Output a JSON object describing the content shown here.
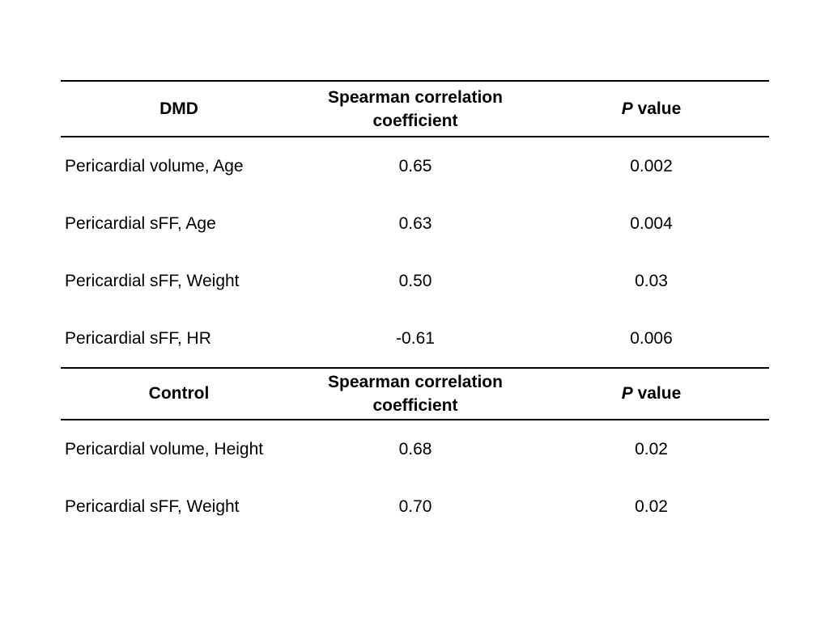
{
  "colors": {
    "background": "#ffffff",
    "text": "#000000",
    "rule": "#000000"
  },
  "table": {
    "sections": [
      {
        "header": {
          "group": "DMD",
          "coef_line1": "Spearman correlation",
          "coef_line2": "coefficient",
          "p_italic": "P",
          "p_rest": " value"
        },
        "rows": [
          {
            "label": "Pericardial volume, Age",
            "coefficient": "0.65",
            "p_value": "0.002"
          },
          {
            "label": "Pericardial sFF, Age",
            "coefficient": "0.63",
            "p_value": "0.004"
          },
          {
            "label": "Pericardial sFF, Weight",
            "coefficient": "0.50",
            "p_value": "0.03"
          },
          {
            "label": "Pericardial sFF, HR",
            "coefficient": "-0.61",
            "p_value": "0.006"
          }
        ]
      },
      {
        "header": {
          "group": "Control",
          "coef_line1": "Spearman correlation",
          "coef_line2": "coefficient",
          "p_italic": "P",
          "p_rest": " value"
        },
        "rows": [
          {
            "label": "Pericardial volume, Height",
            "coefficient": "0.68",
            "p_value": "0.02"
          },
          {
            "label": "Pericardial sFF, Weight",
            "coefficient": "0.70",
            "p_value": "0.02"
          }
        ]
      }
    ]
  }
}
